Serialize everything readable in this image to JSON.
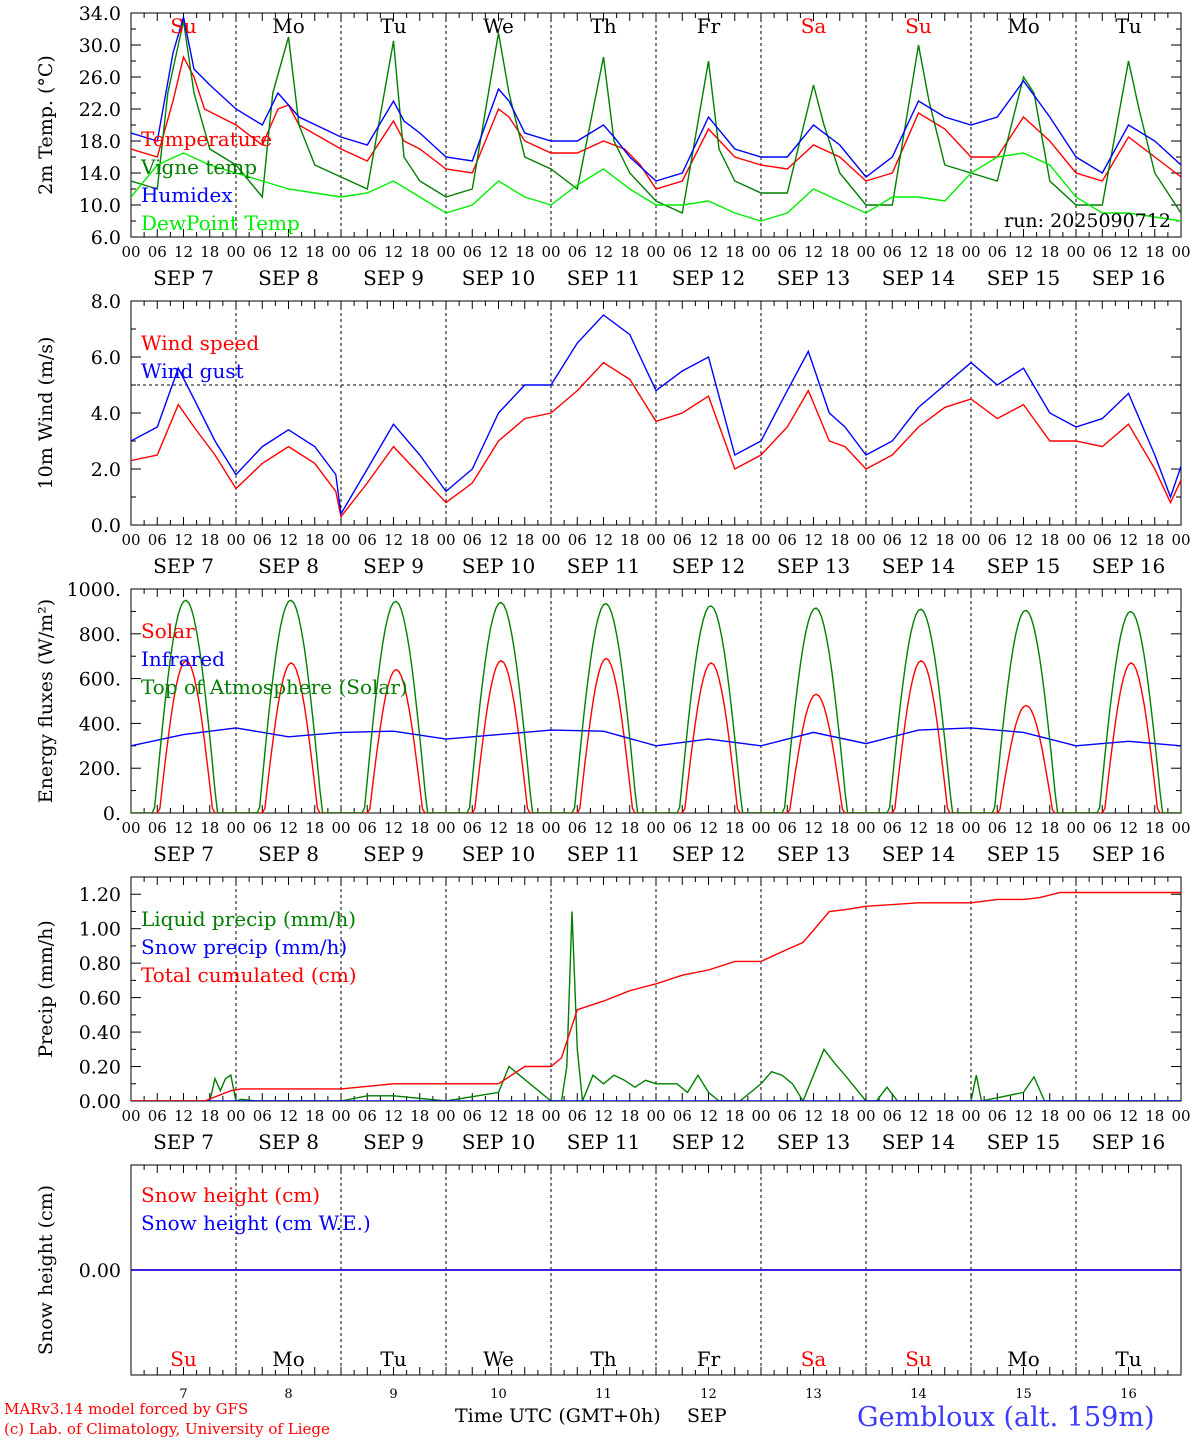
{
  "footer": {
    "model_line": "MARv3.14 model forced by GFS",
    "lab_line": "(c) Lab. of Climatology, University of Liege",
    "station": "Gembloux (alt. 159m)",
    "time_axis_label": "Time UTC (GMT+0h)",
    "month_label": "SEP"
  },
  "days": [
    {
      "abbr": "Su",
      "date": "SEP  7",
      "num": "7",
      "weekend": true
    },
    {
      "abbr": "Mo",
      "date": "SEP  8",
      "num": "8",
      "weekend": false
    },
    {
      "abbr": "Tu",
      "date": "SEP  9",
      "num": "9",
      "weekend": false
    },
    {
      "abbr": "We",
      "date": "SEP 10",
      "num": "10",
      "weekend": false
    },
    {
      "abbr": "Th",
      "date": "SEP 11",
      "num": "11",
      "weekend": false
    },
    {
      "abbr": "Fr",
      "date": "SEP 12",
      "num": "12",
      "weekend": false
    },
    {
      "abbr": "Sa",
      "date": "SEP 13",
      "num": "13",
      "weekend": true
    },
    {
      "abbr": "Su",
      "date": "SEP 14",
      "num": "14",
      "weekend": true
    },
    {
      "abbr": "Mo",
      "date": "SEP 15",
      "num": "15",
      "weekend": false
    },
    {
      "abbr": "Tu",
      "date": "SEP 16",
      "num": "16",
      "weekend": false
    }
  ],
  "hour_labels": [
    "00",
    "06",
    "12",
    "18"
  ],
  "colors": {
    "red": "#ff0000",
    "green": "#007f00",
    "blue": "#0000ff",
    "lightgreen": "#00ee00",
    "weekend": "#ff0000",
    "weekday": "#000000"
  },
  "chart_data": [
    {
      "id": "temperature",
      "type": "line",
      "ylabel": "2m Temp. (°C)",
      "ylim": [
        6,
        34
      ],
      "yticks": [
        "6.0",
        "10.0",
        "14.0",
        "18.0",
        "22.0",
        "26.0",
        "30.0",
        "34.0"
      ],
      "yticks_values": [
        6,
        10,
        14,
        18,
        22,
        26,
        30,
        34
      ],
      "annotation": "run: 2025090712",
      "x_unit": "days since SEP 7 00 UTC",
      "series": [
        {
          "name": "Temperature",
          "color": "#ff0000",
          "x": [
            0,
            0.25,
            0.4,
            0.5,
            0.6,
            0.7,
            1.0,
            1.25,
            1.4,
            1.5,
            1.6,
            2.0,
            2.25,
            2.5,
            2.6,
            2.75,
            3.0,
            3.25,
            3.5,
            3.6,
            3.75,
            4.0,
            4.25,
            4.5,
            4.7,
            4.85,
            5.0,
            5.25,
            5.5,
            5.75,
            6.0,
            6.25,
            6.5,
            6.75,
            7.0,
            7.25,
            7.5,
            7.75,
            8.0,
            8.25,
            8.5,
            8.75,
            9.0,
            9.25,
            9.5,
            9.75,
            10.0
          ],
          "values": [
            17,
            16,
            23,
            28.5,
            26,
            22,
            20,
            17.5,
            22,
            22.5,
            20,
            17,
            15.5,
            20.5,
            18,
            17,
            14.5,
            14,
            22,
            21,
            18,
            16.5,
            16.5,
            18,
            17,
            15,
            12,
            13,
            19.5,
            16,
            15,
            14.5,
            17.5,
            16,
            13,
            14,
            21.5,
            19.5,
            16,
            16,
            21,
            18,
            14,
            13,
            18.5,
            16,
            13.5
          ]
        },
        {
          "name": "Vigne temp",
          "color": "#007f00",
          "x": [
            0,
            0.25,
            0.35,
            0.5,
            0.6,
            0.75,
            1.0,
            1.25,
            1.35,
            1.5,
            1.6,
            1.75,
            2.0,
            2.25,
            2.5,
            2.6,
            2.75,
            3.0,
            3.25,
            3.5,
            3.6,
            3.75,
            4.0,
            4.25,
            4.5,
            4.6,
            4.75,
            5.0,
            5.25,
            5.5,
            5.6,
            5.75,
            6.0,
            6.25,
            6.5,
            6.6,
            6.75,
            7.0,
            7.25,
            7.5,
            7.6,
            7.75,
            8.0,
            8.25,
            8.5,
            8.6,
            8.75,
            9.0,
            9.25,
            9.5,
            9.6,
            9.75,
            10.0
          ],
          "values": [
            13,
            12,
            24,
            33,
            24,
            17,
            15,
            11,
            24,
            31,
            20,
            15,
            13.5,
            12,
            30.5,
            16,
            13,
            11,
            12,
            31.5,
            24,
            16,
            14.5,
            12,
            28.5,
            18,
            14,
            10.5,
            9,
            28,
            17,
            13,
            11.5,
            11.5,
            25,
            20,
            14,
            10,
            10,
            30,
            23,
            15,
            14,
            13,
            26,
            24,
            13,
            10,
            10,
            28,
            22,
            14,
            9
          ]
        },
        {
          "name": "Humidex",
          "color": "#0000ff",
          "x": [
            0,
            0.25,
            0.4,
            0.5,
            0.6,
            0.75,
            1.0,
            1.25,
            1.4,
            1.5,
            1.6,
            2.0,
            2.25,
            2.5,
            2.6,
            2.75,
            3.0,
            3.25,
            3.5,
            3.6,
            3.75,
            4.0,
            4.25,
            4.5,
            4.6,
            4.75,
            5.0,
            5.25,
            5.5,
            5.75,
            6.0,
            6.25,
            6.5,
            6.75,
            7.0,
            7.25,
            7.5,
            7.75,
            8.0,
            8.25,
            8.5,
            8.75,
            9.0,
            9.25,
            9.5,
            9.75,
            10.0
          ],
          "values": [
            19,
            18,
            29,
            33.5,
            27,
            25,
            22,
            20,
            24,
            22.5,
            21,
            18.5,
            17.5,
            23,
            20.5,
            19,
            16,
            15.5,
            24.5,
            23,
            19,
            18,
            18,
            20,
            18.5,
            16,
            13,
            14,
            21,
            17,
            16,
            16,
            20,
            17.5,
            13.5,
            16,
            23,
            21,
            20,
            21,
            25.5,
            21,
            16,
            14,
            20,
            18,
            15
          ]
        },
        {
          "name": "DewPoint Temp",
          "color": "#00ee00",
          "x": [
            0,
            0.25,
            0.5,
            0.75,
            1.0,
            1.25,
            1.5,
            1.75,
            2.0,
            2.25,
            2.5,
            2.75,
            3.0,
            3.25,
            3.5,
            3.75,
            4.0,
            4.25,
            4.5,
            4.75,
            5.0,
            5.25,
            5.5,
            5.75,
            6.0,
            6.25,
            6.5,
            6.75,
            7.0,
            7.25,
            7.5,
            7.75,
            8.0,
            8.25,
            8.5,
            8.75,
            9.0,
            9.25,
            9.5,
            9.75,
            10.0
          ],
          "values": [
            11,
            15,
            16.5,
            15,
            14,
            13,
            12,
            11.5,
            11,
            11.5,
            13,
            11,
            9,
            10,
            13,
            11,
            10,
            12.5,
            14.5,
            12,
            10,
            10,
            10.5,
            9,
            8,
            9,
            12,
            10.5,
            9,
            11,
            11,
            10.5,
            14,
            16,
            16.5,
            15,
            11,
            9,
            9,
            8.5,
            8
          ]
        }
      ]
    },
    {
      "id": "wind",
      "type": "line",
      "ylabel": "10m Wind (m/s)",
      "ylim": [
        0,
        8
      ],
      "yticks": [
        "0.0",
        "2.0",
        "4.0",
        "6.0",
        "8.0"
      ],
      "yticks_values": [
        0,
        2,
        4,
        6,
        8
      ],
      "reference_line": 5,
      "x_unit": "days since SEP 7 00 UTC",
      "series": [
        {
          "name": "Wind speed",
          "color": "#ff0000",
          "x": [
            0,
            0.25,
            0.45,
            0.6,
            0.8,
            1.0,
            1.25,
            1.5,
            1.75,
            1.95,
            2.0,
            2.25,
            2.5,
            2.75,
            3.0,
            3.25,
            3.5,
            3.75,
            4.0,
            4.25,
            4.5,
            4.75,
            5.0,
            5.25,
            5.5,
            5.75,
            6.0,
            6.25,
            6.45,
            6.65,
            6.8,
            7.0,
            7.25,
            7.5,
            7.75,
            8.0,
            8.25,
            8.5,
            8.75,
            9.0,
            9.25,
            9.5,
            9.75,
            9.9,
            10.0
          ],
          "values": [
            2.3,
            2.5,
            4.3,
            3.5,
            2.5,
            1.3,
            2.2,
            2.8,
            2.2,
            1.2,
            0.3,
            1.5,
            2.8,
            1.8,
            0.8,
            1.5,
            3.0,
            3.8,
            4.0,
            4.8,
            5.8,
            5.2,
            3.7,
            4.0,
            4.6,
            2.0,
            2.5,
            3.5,
            4.8,
            3.0,
            2.8,
            2.0,
            2.5,
            3.5,
            4.2,
            4.5,
            3.8,
            4.3,
            3.0,
            3.0,
            2.8,
            3.6,
            2.0,
            0.8,
            1.6
          ]
        },
        {
          "name": "Wind gust",
          "color": "#0000ff",
          "x": [
            0,
            0.25,
            0.45,
            0.6,
            0.8,
            1.0,
            1.25,
            1.5,
            1.75,
            1.95,
            2.0,
            2.25,
            2.5,
            2.75,
            3.0,
            3.25,
            3.5,
            3.75,
            4.0,
            4.25,
            4.5,
            4.75,
            5.0,
            5.25,
            5.5,
            5.75,
            6.0,
            6.25,
            6.45,
            6.65,
            6.8,
            7.0,
            7.25,
            7.5,
            7.75,
            8.0,
            8.25,
            8.5,
            8.75,
            9.0,
            9.25,
            9.5,
            9.75,
            9.9,
            10.0
          ],
          "values": [
            3.0,
            3.5,
            5.6,
            4.5,
            3.0,
            1.8,
            2.8,
            3.4,
            2.8,
            1.8,
            0.4,
            2.0,
            3.6,
            2.5,
            1.2,
            2.0,
            4.0,
            5.0,
            5.0,
            6.5,
            7.5,
            6.8,
            4.8,
            5.5,
            6.0,
            2.5,
            3.0,
            4.8,
            6.2,
            4.0,
            3.5,
            2.5,
            3.0,
            4.2,
            5.0,
            5.8,
            5.0,
            5.6,
            4.0,
            3.5,
            3.8,
            4.7,
            2.5,
            1.0,
            2.1
          ]
        }
      ]
    },
    {
      "id": "energy",
      "type": "line",
      "ylabel": "Energy fluxes (W/m²)",
      "ylim": [
        0,
        1000
      ],
      "yticks": [
        "0.",
        "200.",
        "400.",
        "600.",
        "800.",
        "1000."
      ],
      "yticks_values": [
        0,
        200,
        400,
        600,
        800,
        1000
      ],
      "x_unit": "days since SEP 7 00 UTC",
      "series": [
        {
          "name": "Solar",
          "color": "#ff0000",
          "peak_values": [
            680,
            670,
            640,
            680,
            690,
            670,
            530,
            680,
            480,
            670
          ]
        },
        {
          "name": "Infrared",
          "color": "#0000ff",
          "x": [
            0,
            0.5,
            1.0,
            1.5,
            2.0,
            2.5,
            3.0,
            3.5,
            4.0,
            4.5,
            5.0,
            5.5,
            6.0,
            6.5,
            7.0,
            7.5,
            8.0,
            8.5,
            9.0,
            9.5,
            10.0
          ],
          "values": [
            300,
            350,
            380,
            340,
            360,
            365,
            330,
            350,
            370,
            365,
            300,
            330,
            300,
            360,
            310,
            370,
            380,
            360,
            300,
            320,
            300
          ]
        },
        {
          "name": "Top of Atmosphere (Solar)",
          "color": "#007f00",
          "peak_values": [
            950,
            950,
            945,
            940,
            935,
            925,
            915,
            910,
            905,
            900
          ]
        }
      ]
    },
    {
      "id": "precip",
      "type": "line",
      "ylabel": "Precip (mm/h)",
      "ylim": [
        0,
        1.3
      ],
      "yticks": [
        "0.00",
        "0.20",
        "0.40",
        "0.60",
        "0.80",
        "1.00",
        "1.20"
      ],
      "yticks_values": [
        0,
        0.2,
        0.4,
        0.6,
        0.8,
        1.0,
        1.2
      ],
      "x_unit": "days since SEP 7 00 UTC",
      "series": [
        {
          "name": "Liquid precip (mm/h)",
          "color": "#007f00",
          "x": [
            0,
            0.75,
            0.8,
            0.85,
            0.9,
            0.95,
            1.0,
            1.05,
            1.2,
            2.0,
            2.25,
            2.5,
            3.0,
            3.5,
            3.6,
            3.7,
            3.8,
            4.0,
            4.1,
            4.15,
            4.2,
            4.25,
            4.3,
            4.4,
            4.5,
            4.6,
            4.7,
            4.8,
            4.9,
            5.0,
            5.2,
            5.3,
            5.4,
            5.5,
            5.6,
            5.8,
            6.0,
            6.1,
            6.2,
            6.3,
            6.4,
            6.5,
            6.6,
            6.7,
            6.8,
            7.0,
            7.1,
            7.2,
            7.3,
            7.5,
            8.0,
            8.05,
            8.1,
            8.5,
            8.6,
            8.7,
            9.0,
            10.0
          ],
          "values": [
            0,
            0,
            0.13,
            0.06,
            0.13,
            0.15,
            0,
            0.01,
            0,
            0,
            0.03,
            0.03,
            0,
            0.05,
            0.2,
            0.15,
            0.1,
            0,
            0,
            0.2,
            1.1,
            0.3,
            0,
            0.15,
            0.1,
            0.15,
            0.12,
            0.08,
            0.12,
            0.1,
            0.1,
            0.05,
            0.15,
            0.05,
            0,
            0,
            0.1,
            0.17,
            0.15,
            0.1,
            0,
            0.15,
            0.3,
            0.22,
            0.15,
            0,
            0,
            0.08,
            0,
            0,
            0,
            0.15,
            0,
            0.05,
            0.14,
            0,
            0,
            0
          ]
        },
        {
          "name": "Snow precip (mm/h)",
          "color": "#0000ff",
          "x": [
            0,
            10
          ],
          "values": [
            0,
            0
          ]
        },
        {
          "name": "Total cumulated (cm)",
          "color": "#ff0000",
          "x": [
            0,
            0.7,
            0.95,
            1.05,
            2.0,
            2.5,
            3.0,
            3.5,
            3.75,
            4.0,
            4.1,
            4.25,
            4.5,
            4.75,
            5.0,
            5.25,
            5.5,
            5.75,
            6.0,
            6.25,
            6.4,
            6.65,
            6.8,
            7.0,
            7.5,
            7.75,
            8.0,
            8.25,
            8.5,
            8.65,
            8.85,
            9.0,
            10.0
          ],
          "values": [
            0,
            0,
            0.06,
            0.07,
            0.07,
            0.1,
            0.1,
            0.1,
            0.2,
            0.2,
            0.25,
            0.53,
            0.58,
            0.64,
            0.68,
            0.73,
            0.76,
            0.81,
            0.81,
            0.88,
            0.92,
            1.1,
            1.11,
            1.13,
            1.15,
            1.15,
            1.15,
            1.17,
            1.17,
            1.18,
            1.21,
            1.21,
            1.21
          ]
        }
      ]
    },
    {
      "id": "snow",
      "type": "line",
      "ylabel": "Snow height (cm)",
      "yticks": [
        "0.00"
      ],
      "yticks_values": [
        0
      ],
      "x_unit": "days since SEP 7 00 UTC",
      "series": [
        {
          "name": "Snow height (cm)",
          "color": "#ff0000",
          "x": [
            0,
            10
          ],
          "values": [
            0,
            0
          ]
        },
        {
          "name": "Snow height (cm W.E.)",
          "color": "#0000ff",
          "x": [
            0,
            10
          ],
          "values": [
            0,
            0
          ]
        }
      ]
    }
  ]
}
